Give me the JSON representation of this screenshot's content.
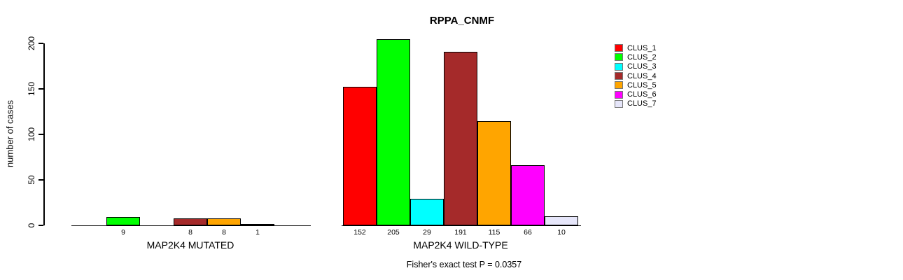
{
  "page": {
    "title": "RPPA_CNMF",
    "annotation": "Fisher's exact test P = 0.0357"
  },
  "chart_data": {
    "type": "bar",
    "title": "RPPA_CNMF",
    "xlabel": "",
    "ylabel": "number of cases",
    "ylim": [
      0,
      200
    ],
    "yticks": [
      0,
      50,
      100,
      150,
      200
    ],
    "grid": false,
    "legend_position": "right",
    "clusters": [
      {
        "name": "CLUS_1",
        "color": "#FF0000"
      },
      {
        "name": "CLUS_2",
        "color": "#00FF00"
      },
      {
        "name": "CLUS_3",
        "color": "#00FFFF"
      },
      {
        "name": "CLUS_4",
        "color": "#A52A2A"
      },
      {
        "name": "CLUS_5",
        "color": "#FFA500"
      },
      {
        "name": "CLUS_6",
        "color": "#FF00FF"
      },
      {
        "name": "CLUS_7",
        "color": "#E6E6FA"
      }
    ],
    "groups": [
      {
        "label": "MAP2K4 MUTATED",
        "values": [
          0,
          9,
          0,
          8,
          8,
          1,
          0
        ]
      },
      {
        "label": "MAP2K4 WILD-TYPE",
        "values": [
          152,
          205,
          29,
          191,
          115,
          66,
          10
        ]
      }
    ],
    "annotation": "Fisher's exact test P = 0.0357"
  }
}
